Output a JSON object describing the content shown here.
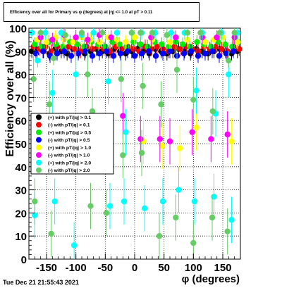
{
  "chart_data": {
    "type": "scatter",
    "title": "Efficiency over all for Primary vs φ (degrees) at |η| <= 1.0 at pT > 0.11",
    "xlabel": "φ (degrees)",
    "ylabel": "Efficiency over all (%)",
    "xlim": [
      -180,
      180
    ],
    "ylim": [
      0,
      100
    ],
    "xticks": [
      -150,
      -100,
      -50,
      0,
      50,
      100,
      150
    ],
    "yticks": [
      0,
      10,
      20,
      30,
      40,
      50,
      60,
      70,
      80,
      90,
      100
    ],
    "grid": true,
    "legend_position": "left-middle",
    "series": [
      {
        "name": "(+) with pT/|q| > 0.1",
        "color": "#000000",
        "points": [
          [
            -175,
            90
          ],
          [
            -165,
            91
          ],
          [
            -155,
            90
          ],
          [
            -145,
            89
          ],
          [
            -135,
            91
          ],
          [
            -125,
            90
          ],
          [
            -115,
            89
          ],
          [
            -105,
            91
          ],
          [
            -95,
            90
          ],
          [
            -85,
            89
          ],
          [
            -75,
            90
          ],
          [
            -65,
            91
          ],
          [
            -55,
            90
          ],
          [
            -45,
            89
          ],
          [
            -35,
            91
          ],
          [
            -25,
            90
          ],
          [
            -15,
            89
          ],
          [
            -5,
            90
          ],
          [
            5,
            91
          ],
          [
            15,
            90
          ],
          [
            25,
            89
          ],
          [
            35,
            91
          ],
          [
            45,
            90
          ],
          [
            55,
            89
          ],
          [
            65,
            90
          ],
          [
            75,
            91
          ],
          [
            85,
            90
          ],
          [
            95,
            89
          ],
          [
            105,
            91
          ],
          [
            115,
            90
          ],
          [
            125,
            89
          ],
          [
            135,
            90
          ],
          [
            145,
            91
          ],
          [
            155,
            90
          ],
          [
            165,
            89
          ],
          [
            175,
            90
          ]
        ]
      },
      {
        "name": "(-) with pT/|q| > 0.1",
        "color": "#ff0000",
        "points": [
          [
            -172,
            92
          ],
          [
            -162,
            91
          ],
          [
            -152,
            92
          ],
          [
            -142,
            90
          ],
          [
            -132,
            92
          ],
          [
            -122,
            91
          ],
          [
            -112,
            92
          ],
          [
            -102,
            91
          ],
          [
            -92,
            90
          ],
          [
            -82,
            92
          ],
          [
            -72,
            91
          ],
          [
            -62,
            92
          ],
          [
            -52,
            91
          ],
          [
            -42,
            90
          ],
          [
            -32,
            92
          ],
          [
            -22,
            91
          ],
          [
            -12,
            92
          ],
          [
            -2,
            91
          ],
          [
            8,
            90
          ],
          [
            18,
            92
          ],
          [
            28,
            91
          ],
          [
            38,
            92
          ],
          [
            48,
            91
          ],
          [
            58,
            90
          ],
          [
            68,
            92
          ],
          [
            78,
            91
          ],
          [
            88,
            92
          ],
          [
            98,
            91
          ],
          [
            108,
            90
          ],
          [
            118,
            92
          ],
          [
            128,
            91
          ],
          [
            138,
            92
          ],
          [
            148,
            91
          ],
          [
            158,
            90
          ],
          [
            168,
            92
          ],
          [
            178,
            91
          ]
        ]
      },
      {
        "name": "(+) with pT/|q| > 0.5",
        "color": "#00ee00",
        "points": [
          [
            -170,
            93
          ],
          [
            -158,
            92
          ],
          [
            -146,
            94
          ],
          [
            -134,
            93
          ],
          [
            -122,
            92
          ],
          [
            -110,
            94
          ],
          [
            -98,
            93
          ],
          [
            -86,
            92
          ],
          [
            -74,
            94
          ],
          [
            -62,
            93
          ],
          [
            -50,
            92
          ],
          [
            -38,
            94
          ],
          [
            -26,
            93
          ],
          [
            -14,
            92
          ],
          [
            -2,
            94
          ],
          [
            10,
            93
          ],
          [
            22,
            92
          ],
          [
            34,
            94
          ],
          [
            46,
            93
          ],
          [
            58,
            92
          ],
          [
            70,
            94
          ],
          [
            82,
            93
          ],
          [
            94,
            92
          ],
          [
            106,
            94
          ],
          [
            118,
            93
          ],
          [
            130,
            92
          ],
          [
            142,
            94
          ],
          [
            154,
            93
          ],
          [
            166,
            92
          ],
          [
            176,
            94
          ]
        ]
      },
      {
        "name": "(-) with pT/|q| > 0.5",
        "color": "#0000ff",
        "points": [
          [
            -168,
            89
          ],
          [
            -156,
            90
          ],
          [
            -144,
            88
          ],
          [
            -132,
            89
          ],
          [
            -120,
            90
          ],
          [
            -108,
            88
          ],
          [
            -96,
            89
          ],
          [
            -84,
            90
          ],
          [
            -72,
            88
          ],
          [
            -60,
            89
          ],
          [
            -48,
            90
          ],
          [
            -36,
            88
          ],
          [
            -24,
            89
          ],
          [
            -12,
            90
          ],
          [
            0,
            88
          ],
          [
            12,
            89
          ],
          [
            24,
            90
          ],
          [
            36,
            88
          ],
          [
            48,
            89
          ],
          [
            60,
            90
          ],
          [
            72,
            88
          ],
          [
            84,
            89
          ],
          [
            96,
            90
          ],
          [
            108,
            88
          ],
          [
            120,
            89
          ],
          [
            132,
            90
          ],
          [
            144,
            88
          ],
          [
            156,
            89
          ],
          [
            168,
            90
          ]
        ]
      },
      {
        "name": "(+) with pT/|q| > 1.0",
        "color": "#ffff00",
        "points": [
          [
            -165,
            95
          ],
          [
            -150,
            94
          ],
          [
            -135,
            96
          ],
          [
            -120,
            95
          ],
          [
            -105,
            94
          ],
          [
            -90,
            96
          ],
          [
            -75,
            95
          ],
          [
            -60,
            94
          ],
          [
            -45,
            96
          ],
          [
            -30,
            95
          ],
          [
            -15,
            94
          ],
          [
            0,
            96
          ],
          [
            15,
            51
          ],
          [
            30,
            95
          ],
          [
            47,
            49
          ],
          [
            60,
            94
          ],
          [
            77,
            48
          ],
          [
            90,
            95
          ],
          [
            105,
            57
          ],
          [
            120,
            94
          ],
          [
            135,
            95
          ],
          [
            150,
            96
          ],
          [
            165,
            51
          ],
          [
            175,
            94
          ]
        ]
      },
      {
        "name": "(-) with pT/|q| > 1.0",
        "color": "#ff00ff",
        "points": [
          [
            -160,
            96
          ],
          [
            -140,
            95
          ],
          [
            -120,
            97
          ],
          [
            -100,
            96
          ],
          [
            -80,
            95
          ],
          [
            -60,
            97
          ],
          [
            -40,
            96
          ],
          [
            -20,
            62
          ],
          [
            10,
            52
          ],
          [
            28,
            96
          ],
          [
            43,
            52
          ],
          [
            60,
            51
          ],
          [
            70,
            96
          ],
          [
            98,
            55
          ],
          [
            115,
            96
          ],
          [
            130,
            52
          ],
          [
            140,
            96
          ],
          [
            158,
            54
          ],
          [
            170,
            96
          ]
        ]
      },
      {
        "name": "(+) with pT/|q| > 2.0",
        "color": "#00ffff",
        "points": [
          [
            -175,
            98
          ],
          [
            -170,
            19
          ],
          [
            -165,
            86
          ],
          [
            -152,
            98
          ],
          [
            -140,
            72
          ],
          [
            -136,
            25
          ],
          [
            -125,
            98
          ],
          [
            -103,
            6
          ],
          [
            -100,
            80
          ],
          [
            -90,
            97
          ],
          [
            -70,
            98
          ],
          [
            -45,
            77
          ],
          [
            -42,
            23
          ],
          [
            -30,
            98
          ],
          [
            -18,
            25
          ],
          [
            -15,
            55
          ],
          [
            -5,
            98
          ],
          [
            12,
            98
          ],
          [
            17,
            22
          ],
          [
            35,
            98
          ],
          [
            48,
            25
          ],
          [
            62,
            98
          ],
          [
            75,
            30
          ],
          [
            85,
            98
          ],
          [
            102,
            25
          ],
          [
            105,
            73
          ],
          [
            115,
            98
          ],
          [
            135,
            27
          ],
          [
            138,
            63
          ],
          [
            148,
            98
          ],
          [
            160,
            80
          ],
          [
            165,
            17
          ],
          [
            175,
            98
          ]
        ]
      },
      {
        "name": "(-) with pT/|q| > 2.0",
        "color": "#66cc66",
        "points": [
          [
            -172,
            78
          ],
          [
            -170,
            25
          ],
          [
            -160,
            98
          ],
          [
            -145,
            67
          ],
          [
            -142,
            11
          ],
          [
            -138,
            87
          ],
          [
            -118,
            97
          ],
          [
            -90,
            98
          ],
          [
            -80,
            80
          ],
          [
            -75,
            23
          ],
          [
            -72,
            64
          ],
          [
            -55,
            98
          ],
          [
            -48,
            20
          ],
          [
            -23,
            78
          ],
          [
            -20,
            45
          ],
          [
            -5,
            98
          ],
          [
            10,
            98
          ],
          [
            12,
            46
          ],
          [
            14,
            75
          ],
          [
            30,
            98
          ],
          [
            42,
            10
          ],
          [
            45,
            67
          ],
          [
            55,
            97
          ],
          [
            70,
            18
          ],
          [
            72,
            82
          ],
          [
            90,
            98
          ],
          [
            100,
            7
          ],
          [
            100,
            69
          ],
          [
            112,
            98
          ],
          [
            132,
            18
          ],
          [
            133,
            64
          ],
          [
            145,
            98
          ],
          [
            158,
            12
          ],
          [
            160,
            86
          ],
          [
            170,
            98
          ]
        ]
      }
    ]
  },
  "footer_text": "Tue Dec 21 21:55:43 2021"
}
